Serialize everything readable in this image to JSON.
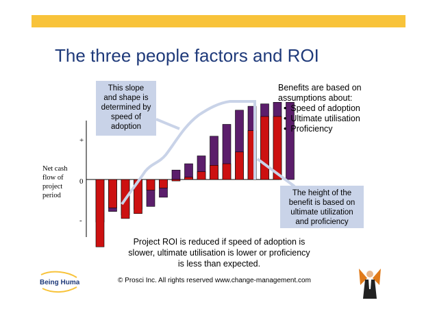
{
  "title": "The three people factors and ROI",
  "callout_slope": [
    "This slope",
    "and shape is",
    "determined by",
    "speed of",
    "adoption"
  ],
  "benefits": {
    "heading": [
      "Benefits are based on",
      "assumptions about:"
    ],
    "items": [
      "Speed of adoption",
      "Ultimate utilisation",
      "Proficiency"
    ]
  },
  "callout_height": [
    "The height of the",
    "benefit is based on",
    "ultimate utilization",
    "and proficiency"
  ],
  "yaxis_label": [
    "Net cash",
    "flow of",
    "project",
    "period"
  ],
  "ticks": {
    "plus": "+",
    "zero": "0",
    "minus": "-"
  },
  "roi_text": [
    "Project ROI is reduced if speed of adoption is",
    "slower, ultimate utilisation is lower or proficiency",
    "is less than expected."
  ],
  "footer": "© Prosci Inc. All rights reserved www.change-management.com",
  "logo": {
    "text": "Being Human"
  },
  "colors": {
    "accent_bar": "#f8c33a",
    "title": "#1f3a7a",
    "purple_bar": "#5b1e6b",
    "red_bar": "#cc1111",
    "curve": "#c9d3e8",
    "callout": "#c9d3e8"
  },
  "chart_data": {
    "type": "bar",
    "note_scale": "relative net cash flow; y in [-1, 1] where 0 is baseline",
    "series": [
      {
        "values": [
          -0.6,
          -0.45,
          -0.5,
          -0.42,
          -0.38,
          -0.25,
          0.12,
          0.2,
          0.3,
          0.55,
          0.7,
          0.88,
          0.93,
          0.96,
          0.98,
          0.98
        ]
      },
      {
        "values": [
          -0.95,
          -0.4,
          -0.55,
          -0.48,
          -0.15,
          -0.12,
          -0.02,
          0.03,
          0.1,
          0.18,
          0.2,
          0.35,
          0.62,
          0.8,
          0.8
        ]
      }
    ],
    "ylim": [
      -1,
      1
    ]
  }
}
